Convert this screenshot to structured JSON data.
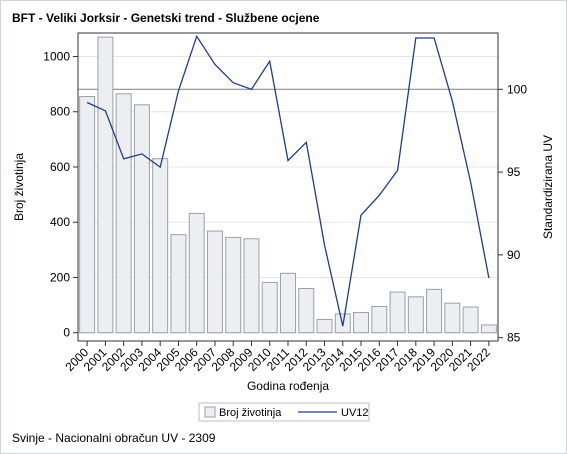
{
  "title": "BFT - Veliki Jorksir - Genetski trend - Službene ocjene",
  "footer": "Svinje - Nacionalni obračun UV - 2309",
  "colors": {
    "bar_fill": "#eceef2",
    "bar_stroke": "#9aa0ab",
    "line": "#1f3d8f",
    "grid": "#e6e6e6",
    "refline": "#8c8c8c",
    "axis": "#333333"
  },
  "chart_data": {
    "type": "bar+line",
    "xlabel": "Godina rođenja",
    "ylabel_left": "Broj životinja",
    "ylabel_right": "Standardizirana UV",
    "categories": [
      "2000",
      "2001",
      "2002",
      "2003",
      "2004",
      "2005",
      "2006",
      "2007",
      "2008",
      "2009",
      "2010",
      "2011",
      "2012",
      "2013",
      "2014",
      "2015",
      "2016",
      "2017",
      "2018",
      "2019",
      "2020",
      "2021",
      "2022"
    ],
    "left_ticks": [
      0,
      200,
      400,
      600,
      800,
      1000
    ],
    "right_ticks": [
      85,
      90,
      95,
      100
    ],
    "ylim_left": [
      -30,
      1085
    ],
    "ylim_right": [
      84.8,
      103.4
    ],
    "reference_line_right": 100,
    "grid": "horizontal",
    "series": [
      {
        "name": "Broj životinja",
        "type": "bar",
        "axis": "left",
        "values": [
          855,
          1070,
          865,
          825,
          630,
          355,
          432,
          368,
          345,
          340,
          182,
          215,
          160,
          48,
          68,
          73,
          95,
          147,
          130,
          157,
          107,
          93,
          28
        ]
      },
      {
        "name": "UV12",
        "type": "line",
        "axis": "right",
        "values": [
          99.2,
          98.7,
          95.8,
          96.1,
          95.3,
          99.9,
          103.2,
          101.5,
          100.4,
          100.0,
          101.7,
          95.7,
          96.8,
          90.6,
          85.7,
          92.4,
          93.6,
          95.1,
          103.1,
          103.1,
          99.3,
          94.4,
          88.6
        ]
      }
    ],
    "legend_position": "bottom"
  }
}
